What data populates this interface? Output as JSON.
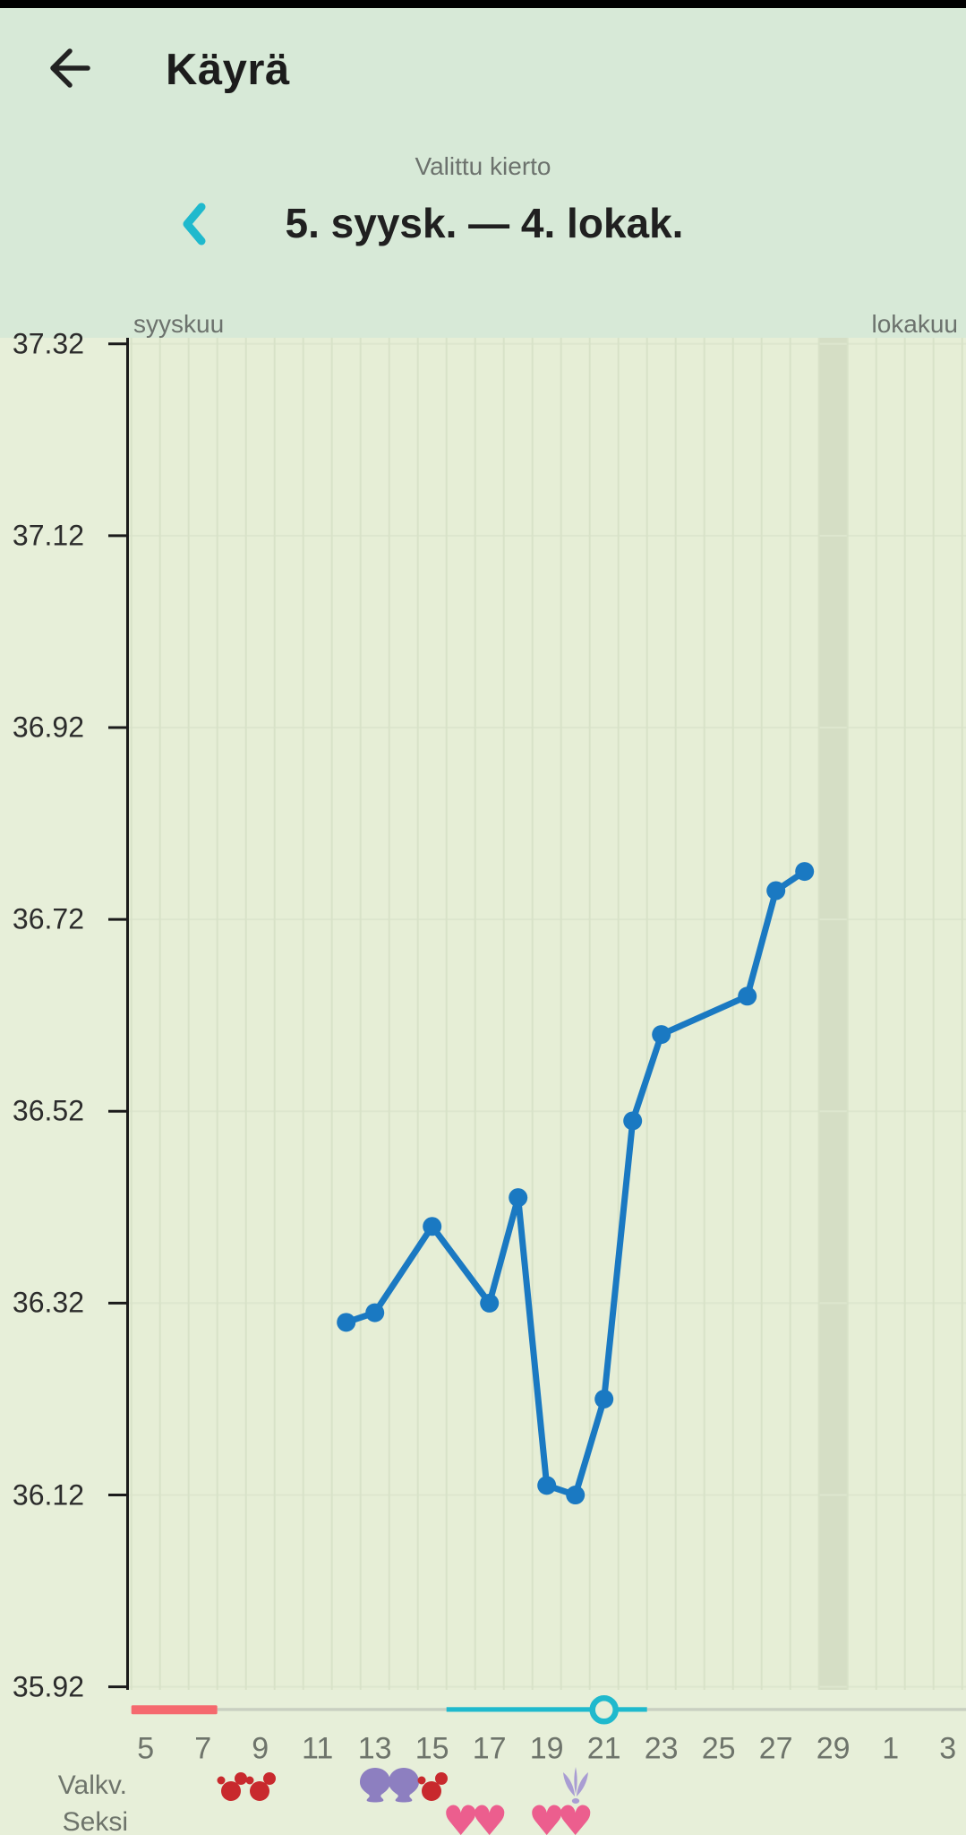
{
  "header": {
    "title": "Käyrä",
    "back_icon": "arrow-left-icon"
  },
  "cycle_selector": {
    "caption": "Valittu kierto",
    "range": "5. syysk. — 4. lokak.",
    "prev_icon": "chevron-left-icon"
  },
  "chart_data": {
    "type": "line",
    "title": "Basal body temperature curve for selected cycle",
    "months": {
      "left": "syyskuu",
      "right": "lokakuu"
    },
    "y_axis": {
      "ticks": [
        37.32,
        37.12,
        36.92,
        36.72,
        36.52,
        36.32,
        36.12,
        35.92
      ],
      "min": 35.92,
      "max": 37.32
    },
    "x_axis": {
      "tick_days": [
        5,
        7,
        9,
        11,
        13,
        15,
        17,
        19,
        21,
        23,
        25,
        27,
        29,
        31,
        33
      ],
      "tick_labels": [
        "5",
        "7",
        "9",
        "11",
        "13",
        "15",
        "17",
        "19",
        "21",
        "23",
        "25",
        "27",
        "29",
        "1",
        "3"
      ],
      "first_day": 5,
      "last_day": 34
    },
    "temperature_series": [
      {
        "day": 12,
        "temp": 36.3
      },
      {
        "day": 13,
        "temp": 36.31
      },
      {
        "day": 15,
        "temp": 36.4
      },
      {
        "day": 17,
        "temp": 36.32
      },
      {
        "day": 18,
        "temp": 36.43
      },
      {
        "day": 19,
        "temp": 36.13
      },
      {
        "day": 20,
        "temp": 36.12
      },
      {
        "day": 21,
        "temp": 36.22
      },
      {
        "day": 22,
        "temp": 36.51
      },
      {
        "day": 23,
        "temp": 36.6
      },
      {
        "day": 26,
        "temp": 36.64
      },
      {
        "day": 27,
        "temp": 36.75
      },
      {
        "day": 28,
        "temp": 36.77
      }
    ],
    "highlight_day": 29,
    "period_days": {
      "start": 5,
      "end": 7
    },
    "fertile_window": {
      "start": 16,
      "end": 22
    },
    "ovulation_day": 21,
    "rows": {
      "mucus_label": "Valkv.",
      "mucus_entries": [
        {
          "day": 8,
          "icon": "spotting-icon"
        },
        {
          "day": 9,
          "icon": "spotting-icon"
        },
        {
          "day": 13,
          "icon": "mucus-fan-icon"
        },
        {
          "day": 14,
          "icon": "mucus-fan-icon"
        },
        {
          "day": 15,
          "icon": "spotting-icon"
        },
        {
          "day": 20,
          "icon": "mucus-fern-icon"
        }
      ],
      "sex_label": "Seksi",
      "sex_days": [
        16,
        17,
        19,
        20
      ],
      "sex_icon": "heart-icon"
    },
    "colors": {
      "line_blue": "#1a79c2",
      "accent_cyan": "#1fb9cd",
      "period_red": "#f5696e",
      "neutral_bar": "#c9cfc1",
      "spotting_red": "#c8292d",
      "mucus_purple": "#8d7fc0",
      "fern_purple": "#a99dd3",
      "heart_pink": "#ec5e8e",
      "plot_bg": "#e6eed6",
      "highlight_col": "#d5dec5",
      "grid": "#d8e2c8",
      "grid_faint": "#dde6ce",
      "axis": "#1b1b1b",
      "bg_top": "#d7e9d7",
      "bg_bottom": "#e7efd9"
    }
  }
}
